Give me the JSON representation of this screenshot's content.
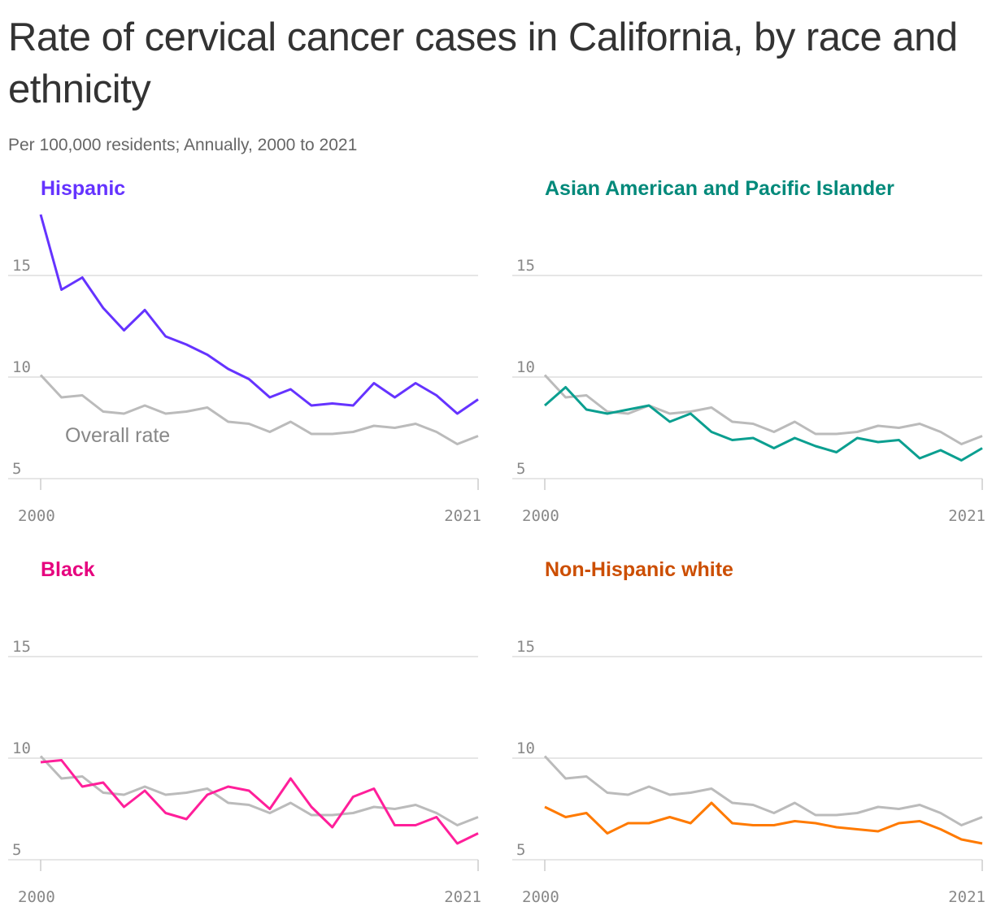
{
  "chart_data": {
    "type": "line",
    "title": "Rate of cervical cancer cases in California, by race and ethnicity",
    "subtitle": "Per 100,000 residents; Annually, 2000 to 2021",
    "x": [
      2000,
      2001,
      2002,
      2003,
      2004,
      2005,
      2006,
      2007,
      2008,
      2009,
      2010,
      2011,
      2012,
      2013,
      2014,
      2015,
      2016,
      2017,
      2018,
      2019,
      2020,
      2021
    ],
    "x_tick_labels": [
      "2000",
      "2021"
    ],
    "y_ticks": [
      5,
      10,
      15
    ],
    "y_tick_labels": [
      "5",
      "10",
      "15"
    ],
    "ylim": [
      5,
      18
    ],
    "grid": true,
    "overall": {
      "label": "Overall rate",
      "color": "#bbbbbb",
      "values": [
        10.1,
        9.0,
        9.1,
        8.3,
        8.2,
        8.6,
        8.2,
        8.3,
        8.5,
        7.8,
        7.7,
        7.3,
        7.8,
        7.2,
        7.2,
        7.3,
        7.6,
        7.5,
        7.7,
        7.3,
        6.7,
        7.1
      ]
    },
    "panels": [
      {
        "name": "Hispanic",
        "color": "#6533ff",
        "title_color": "#6533ff",
        "values": [
          18.0,
          14.3,
          14.9,
          13.4,
          12.3,
          13.3,
          12.0,
          11.6,
          11.1,
          10.4,
          9.9,
          9.0,
          9.4,
          8.6,
          8.7,
          8.6,
          9.7,
          9.0,
          9.7,
          9.1,
          8.2,
          8.9
        ]
      },
      {
        "name": "Asian American and Pacific Islander",
        "color": "#0b9f90",
        "title_color": "#00897a",
        "values": [
          8.6,
          9.5,
          8.4,
          8.2,
          8.4,
          8.6,
          7.8,
          8.2,
          7.3,
          6.9,
          7.0,
          6.5,
          7.0,
          6.6,
          6.3,
          7.0,
          6.8,
          6.9,
          6.0,
          6.4,
          5.9,
          6.5
        ]
      },
      {
        "name": "Black",
        "color": "#ff1f9a",
        "title_color": "#e6007e",
        "values": [
          9.8,
          9.9,
          8.6,
          8.8,
          7.6,
          8.4,
          7.3,
          7.0,
          8.2,
          8.6,
          8.4,
          7.5,
          9.0,
          7.6,
          6.6,
          8.1,
          8.5,
          6.7,
          6.7,
          7.1,
          5.8,
          6.3
        ]
      },
      {
        "name": "Non-Hispanic white",
        "color": "#ff7a00",
        "title_color": "#cc4e00",
        "values": [
          7.6,
          7.1,
          7.3,
          6.3,
          6.8,
          6.8,
          7.1,
          6.8,
          7.8,
          6.8,
          6.7,
          6.7,
          6.9,
          6.8,
          6.6,
          6.5,
          6.4,
          6.8,
          6.9,
          6.5,
          6.0,
          5.8
        ]
      }
    ]
  }
}
